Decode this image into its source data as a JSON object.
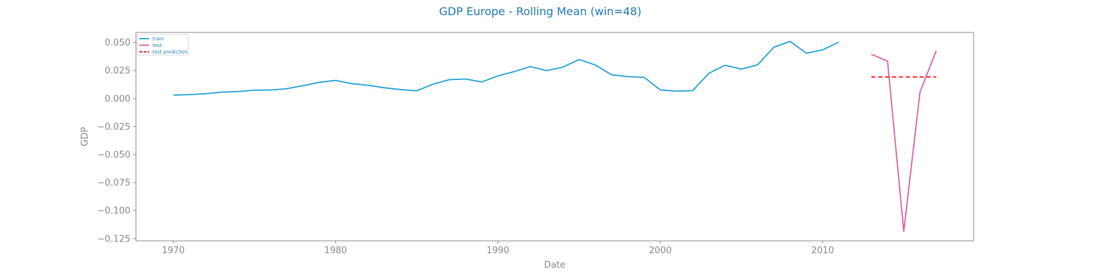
{
  "chart_data": {
    "type": "line",
    "title": "GDP Europe - Rolling Mean (win=48)",
    "xlabel": "Date",
    "ylabel": "GDP",
    "xlim": [
      1967.7,
      2019.3
    ],
    "ylim": [
      -0.127,
      0.059
    ],
    "xticks": [
      1970,
      1980,
      1990,
      2000,
      2010
    ],
    "yticks": [
      -0.125,
      -0.1,
      -0.075,
      -0.05,
      -0.025,
      0.0,
      0.025,
      0.05
    ],
    "ytick_labels": [
      "−0.125",
      "−0.100",
      "−0.075",
      "−0.050",
      "−0.025",
      "0.000",
      "0.025",
      "0.050"
    ],
    "grid": false,
    "legend": "top-left",
    "series": [
      {
        "name": "train",
        "color": "#1f9fd6",
        "style": "solid",
        "x": [
          1970,
          1971,
          1972,
          1973,
          1974,
          1975,
          1976,
          1977,
          1978,
          1979,
          1980,
          1981,
          1982,
          1983,
          1984,
          1985,
          1986,
          1987,
          1988,
          1989,
          1990,
          1991,
          1992,
          1993,
          1994,
          1995,
          1996,
          1997,
          1998,
          1999,
          2000,
          2001,
          2002,
          2003,
          2004,
          2005,
          2006,
          2007,
          2008,
          2009,
          2010,
          2011
        ],
        "y": [
          0.003,
          0.0035,
          0.0043,
          0.0057,
          0.0063,
          0.0075,
          0.0076,
          0.0088,
          0.0115,
          0.0145,
          0.0162,
          0.0133,
          0.0118,
          0.0096,
          0.008,
          0.0069,
          0.0128,
          0.0168,
          0.0174,
          0.0148,
          0.0202,
          0.024,
          0.0285,
          0.0249,
          0.0281,
          0.0348,
          0.0299,
          0.0212,
          0.0196,
          0.0189,
          0.0077,
          0.0066,
          0.0071,
          0.0226,
          0.0297,
          0.0263,
          0.0301,
          0.0458,
          0.051,
          0.0404,
          0.0434,
          0.0504
        ]
      },
      {
        "name": "test",
        "color": "#d9609f",
        "style": "solid",
        "x": [
          2013,
          2014,
          2015,
          2016,
          2017
        ],
        "y": [
          0.0395,
          0.0334,
          -0.1185,
          0.0059,
          0.0427
        ]
      },
      {
        "name": "test prediction",
        "color": "#ff0000",
        "style": "dashed",
        "x": [
          2013,
          2014,
          2015,
          2016,
          2017
        ],
        "y": [
          0.0193,
          0.0193,
          0.0193,
          0.0193,
          0.0193
        ]
      }
    ]
  }
}
